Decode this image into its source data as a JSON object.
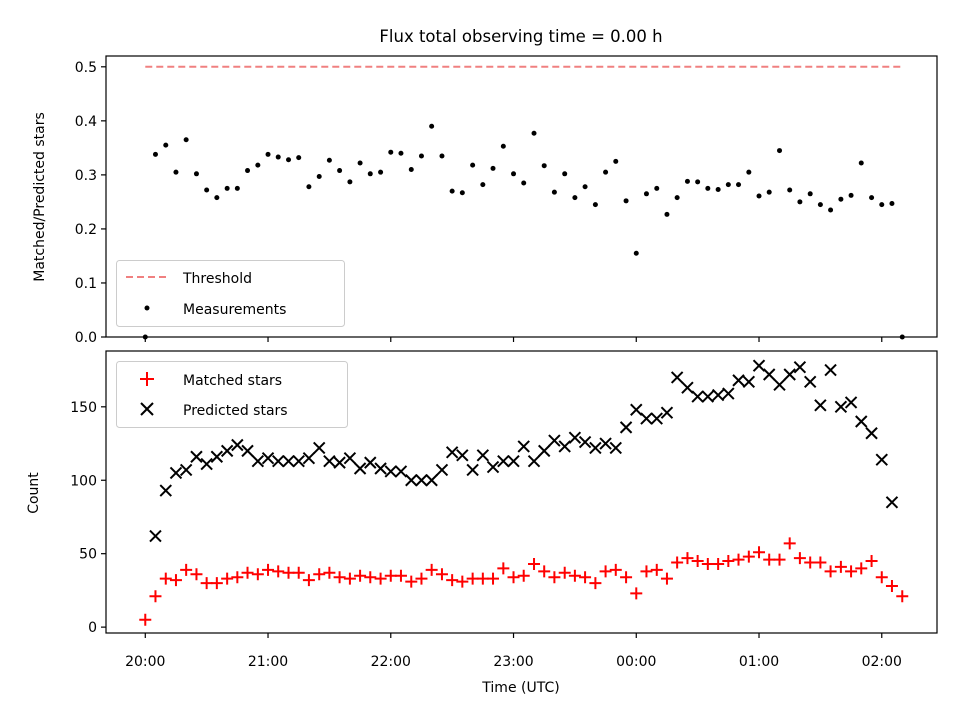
{
  "chart_data": [
    {
      "type": "scatter",
      "title": "Flux total observing time = 0.00 h",
      "xlabel": "",
      "ylabel": "Matched/Predicted stars",
      "ylim": [
        0,
        0.52
      ],
      "xlim": [
        -0.32,
        6.45
      ],
      "yticks": [
        0.0,
        0.1,
        0.2,
        0.3,
        0.4,
        0.5
      ],
      "ytick_labels": [
        "0.0",
        "0.1",
        "0.2",
        "0.3",
        "0.4",
        "0.5"
      ],
      "threshold": {
        "name": "Threshold",
        "value": 0.5,
        "x_range": [
          0.0,
          6.17
        ],
        "color": "#f08080"
      },
      "legend": {
        "position": "lower-left",
        "entries": [
          "Threshold",
          "Measurements"
        ]
      },
      "series": [
        {
          "name": "Measurements",
          "color": "#000000",
          "x": [
            0.0,
            0.083,
            0.167,
            0.25,
            0.333,
            0.417,
            0.5,
            0.583,
            0.667,
            0.75,
            0.833,
            0.917,
            1.0,
            1.083,
            1.167,
            1.25,
            1.333,
            1.417,
            1.5,
            1.583,
            1.667,
            1.75,
            1.833,
            1.917,
            2.0,
            2.083,
            2.167,
            2.25,
            2.333,
            2.417,
            2.5,
            2.583,
            2.667,
            2.75,
            2.833,
            2.917,
            3.0,
            3.083,
            3.167,
            3.25,
            3.333,
            3.417,
            3.5,
            3.583,
            3.667,
            3.75,
            3.833,
            3.917,
            4.0,
            4.083,
            4.167,
            4.25,
            4.333,
            4.417,
            4.5,
            4.583,
            4.667,
            4.75,
            4.833,
            4.917,
            5.0,
            5.083,
            5.167,
            5.25,
            5.333,
            5.417,
            5.5,
            5.583,
            5.667,
            5.75,
            5.833,
            5.917,
            6.0,
            6.083,
            6.167
          ],
          "y": [
            0.0,
            0.338,
            0.355,
            0.305,
            0.365,
            0.302,
            0.272,
            0.258,
            0.275,
            0.275,
            0.308,
            0.318,
            0.338,
            0.333,
            0.328,
            0.332,
            0.278,
            0.297,
            0.327,
            0.308,
            0.287,
            0.322,
            0.302,
            0.305,
            0.342,
            0.34,
            0.31,
            0.335,
            0.39,
            0.335,
            0.27,
            0.267,
            0.318,
            0.282,
            0.312,
            0.353,
            0.302,
            0.285,
            0.377,
            0.317,
            0.268,
            0.302,
            0.258,
            0.278,
            0.245,
            0.305,
            0.325,
            0.252,
            0.155,
            0.265,
            0.275,
            0.227,
            0.258,
            0.288,
            0.287,
            0.275,
            0.273,
            0.282,
            0.282,
            0.305,
            0.261,
            0.268,
            0.345,
            0.272,
            0.25,
            0.265,
            0.245,
            0.235,
            0.255,
            0.262,
            0.322,
            0.258,
            0.245,
            0.247,
            0.0
          ]
        }
      ]
    },
    {
      "type": "scatter",
      "title": "",
      "xlabel": "Time (UTC)",
      "ylabel": "Count",
      "ylim": [
        -4,
        188
      ],
      "xlim": [
        -0.32,
        6.45
      ],
      "yticks": [
        0,
        50,
        100,
        150
      ],
      "ytick_labels": [
        "0",
        "50",
        "100",
        "150"
      ],
      "xticks": [
        0,
        1,
        2,
        3,
        4,
        5,
        6
      ],
      "xtick_labels": [
        "20:00",
        "21:00",
        "22:00",
        "23:00",
        "00:00",
        "01:00",
        "02:00"
      ],
      "legend": {
        "position": "top-left",
        "entries": [
          "Matched stars",
          "Predicted stars"
        ]
      },
      "series": [
        {
          "name": "Matched stars",
          "marker": "plus",
          "color": "#ff0000",
          "x": [
            0.0,
            0.083,
            0.167,
            0.25,
            0.333,
            0.417,
            0.5,
            0.583,
            0.667,
            0.75,
            0.833,
            0.917,
            1.0,
            1.083,
            1.167,
            1.25,
            1.333,
            1.417,
            1.5,
            1.583,
            1.667,
            1.75,
            1.833,
            1.917,
            2.0,
            2.083,
            2.167,
            2.25,
            2.333,
            2.417,
            2.5,
            2.583,
            2.667,
            2.75,
            2.833,
            2.917,
            3.0,
            3.083,
            3.167,
            3.25,
            3.333,
            3.417,
            3.5,
            3.583,
            3.667,
            3.75,
            3.833,
            3.917,
            4.0,
            4.083,
            4.167,
            4.25,
            4.333,
            4.417,
            4.5,
            4.583,
            4.667,
            4.75,
            4.833,
            4.917,
            5.0,
            5.083,
            5.167,
            5.25,
            5.333,
            5.417,
            5.5,
            5.583,
            5.667,
            5.75,
            5.833,
            5.917,
            6.0,
            6.083,
            6.167
          ],
          "y": [
            5,
            21,
            33,
            32,
            39,
            36,
            30,
            30,
            33,
            34,
            37,
            36,
            39,
            38,
            37,
            37,
            32,
            36,
            37,
            34,
            33,
            35,
            34,
            33,
            35,
            35,
            31,
            33,
            39,
            36,
            32,
            31,
            33,
            33,
            33,
            40,
            34,
            35,
            43,
            38,
            34,
            37,
            35,
            34,
            30,
            38,
            39,
            34,
            23,
            38,
            39,
            33,
            44,
            47,
            45,
            43,
            43,
            45,
            46,
            48,
            51,
            46,
            46,
            57,
            47,
            44,
            44,
            38,
            41,
            38,
            40,
            45,
            34,
            28,
            21
          ]
        },
        {
          "name": "Predicted stars",
          "marker": "x",
          "color": "#000000",
          "x": [
            0.083,
            0.167,
            0.25,
            0.333,
            0.417,
            0.5,
            0.583,
            0.667,
            0.75,
            0.833,
            0.917,
            1.0,
            1.083,
            1.167,
            1.25,
            1.333,
            1.417,
            1.5,
            1.583,
            1.667,
            1.75,
            1.833,
            1.917,
            2.0,
            2.083,
            2.167,
            2.25,
            2.333,
            2.417,
            2.5,
            2.583,
            2.667,
            2.75,
            2.833,
            2.917,
            3.0,
            3.083,
            3.167,
            3.25,
            3.333,
            3.417,
            3.5,
            3.583,
            3.667,
            3.75,
            3.833,
            3.917,
            4.0,
            4.083,
            4.167,
            4.25,
            4.333,
            4.417,
            4.5,
            4.583,
            4.667,
            4.75,
            4.833,
            4.917,
            5.0,
            5.083,
            5.167,
            5.25,
            5.333,
            5.417,
            5.5,
            5.583,
            5.667,
            5.75,
            5.833,
            5.917,
            6.0,
            6.083
          ],
          "y": [
            62,
            93,
            105,
            107,
            116,
            111,
            116,
            120,
            124,
            120,
            113,
            115,
            113,
            113,
            113,
            115,
            122,
            113,
            112,
            115,
            108,
            112,
            108,
            106,
            106,
            100,
            100,
            100,
            107,
            119,
            117,
            107,
            117,
            109,
            113,
            113,
            123,
            113,
            120,
            127,
            123,
            129,
            126,
            122,
            125,
            122,
            136,
            148,
            142,
            142,
            146,
            170,
            163,
            157,
            157,
            158,
            159,
            168,
            167,
            178,
            172,
            165,
            172,
            177,
            167,
            151,
            175,
            150,
            153,
            140,
            132,
            114,
            85
          ]
        }
      ]
    }
  ]
}
